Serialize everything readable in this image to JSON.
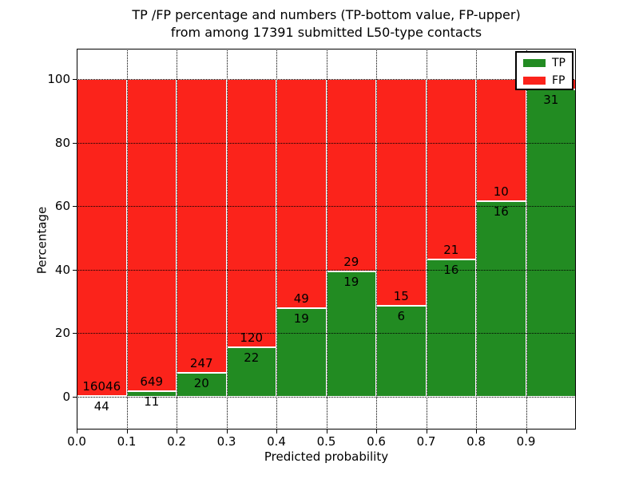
{
  "figure_title_line1": "TP /FP percentage and numbers (TP-bottom value, FP-upper)",
  "figure_title_line2": "from among 17391 submitted L50-type contacts",
  "chart_data": {
    "type": "bar",
    "variant": "stacked-percentage-histogram",
    "title": "TP /FP percentage and numbers (TP-bottom value, FP-upper)\nfrom among 17391 submitted L50-type contacts",
    "xlabel": "Predicted probability",
    "ylabel": "Percentage",
    "xlim": [
      0.0,
      1.0
    ],
    "ylim_display": [
      -10.3,
      109.6
    ],
    "y_ticks": [
      0,
      20,
      40,
      60,
      80,
      100
    ],
    "y_tick_labels": [
      "0",
      "20",
      "40",
      "60",
      "80",
      "100"
    ],
    "x_ticks": [
      0.0,
      0.1,
      0.2,
      0.3,
      0.4,
      0.5,
      0.6,
      0.7,
      0.8,
      0.9
    ],
    "x_tick_labels": [
      "0.0",
      "0.1",
      "0.2",
      "0.3",
      "0.4",
      "0.5",
      "0.6",
      "0.7",
      "0.8",
      "0.9"
    ],
    "grid": "dotted-on-top",
    "colors": {
      "tp": "#228B22",
      "fp": "#FB231B",
      "bar_edge": "#FFFFFF"
    },
    "legend": {
      "position": "upper-right",
      "entries": [
        {
          "label": "TP",
          "color": "#228B22"
        },
        {
          "label": "FP",
          "color": "#FB231B"
        }
      ]
    },
    "bars": [
      {
        "range": [
          0.0,
          0.1
        ],
        "tp_label": "44",
        "fp_label": "16046",
        "tp_pct": 0.27
      },
      {
        "range": [
          0.1,
          0.2
        ],
        "tp_label": "11",
        "fp_label": "649",
        "tp_pct": 1.67
      },
      {
        "range": [
          0.2,
          0.3
        ],
        "tp_label": "20",
        "fp_label": "247",
        "tp_pct": 7.49
      },
      {
        "range": [
          0.3,
          0.4
        ],
        "tp_label": "22",
        "fp_label": "120",
        "tp_pct": 15.49
      },
      {
        "range": [
          0.4,
          0.5
        ],
        "tp_label": "19",
        "fp_label": "49",
        "tp_pct": 27.94
      },
      {
        "range": [
          0.5,
          0.6
        ],
        "tp_label": "19",
        "fp_label": "29",
        "tp_pct": 39.58
      },
      {
        "range": [
          0.6,
          0.7
        ],
        "tp_label": "6",
        "fp_label": "15",
        "tp_pct": 28.57
      },
      {
        "range": [
          0.7,
          0.8
        ],
        "tp_label": "16",
        "fp_label": "21",
        "tp_pct": 43.24
      },
      {
        "range": [
          0.8,
          0.9
        ],
        "tp_label": "16",
        "fp_label": "10",
        "tp_pct": 61.54
      },
      {
        "range": [
          0.9,
          1.0
        ],
        "tp_label": "31",
        "fp_label": null,
        "tp_pct": 96.88
      }
    ]
  }
}
